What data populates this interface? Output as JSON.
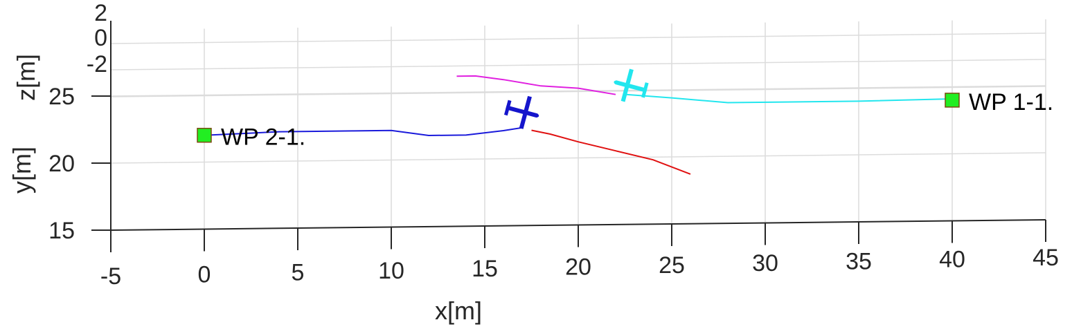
{
  "chart_data": {
    "type": "line",
    "title": "",
    "xlabel": "x[m]",
    "ylabel": "y[m]",
    "zlabel": "z[m]",
    "xlim": [
      -5,
      45
    ],
    "ylim": [
      15,
      27
    ],
    "zlim": [
      -2,
      2
    ],
    "grid": true,
    "x_ticks": [
      "-5",
      "0",
      "5",
      "10",
      "15",
      "20",
      "25",
      "30",
      "35",
      "40",
      "45"
    ],
    "y_ticks": [
      "15",
      "20",
      "25"
    ],
    "z_ticks": [
      "-2",
      "0",
      "2"
    ],
    "colors": {
      "blue_path": "#1a1adb",
      "red_path": "#e01010",
      "magenta_path": "#e020e0",
      "cyan_path": "#22e6ee",
      "blue_aircraft": "#1515cc",
      "cyan_aircraft": "#22e6ee",
      "waypoint_fill": "#22ee22",
      "grid": "#dcdcdc",
      "axis": "#262626"
    },
    "series": [
      {
        "color_key": "blue_path",
        "x": [
          0,
          2,
          4,
          6,
          8,
          10,
          12,
          14,
          16,
          17
        ],
        "y": [
          22.0,
          22.1,
          22.2,
          22.2,
          22.2,
          22.2,
          21.8,
          21.8,
          22.1,
          22.3
        ]
      },
      {
        "color_key": "red_path",
        "x": [
          17.5,
          18.5,
          20,
          22,
          24,
          26
        ],
        "y": [
          22.1,
          21.8,
          21.2,
          20.5,
          19.8,
          18.7
        ]
      },
      {
        "color_key": "magenta_path",
        "x": [
          13.5,
          14.5,
          16,
          18,
          20,
          22
        ],
        "y": [
          26.2,
          26.2,
          25.9,
          25.4,
          25.2,
          24.7
        ]
      },
      {
        "color_key": "cyan_path",
        "x": [
          22.5,
          25,
          28,
          31,
          35,
          40
        ],
        "y": [
          24.7,
          24.4,
          24.0,
          24.0,
          24.0,
          24.1
        ]
      }
    ],
    "aircraft": [
      {
        "icon": "airplane-icon",
        "color_key": "blue_aircraft",
        "x": 17,
        "y": 23.5,
        "heading_deg": 15
      },
      {
        "icon": "airplane-icon",
        "color_key": "cyan_aircraft",
        "x": 22.8,
        "y": 25.3,
        "heading_deg": 195
      }
    ],
    "waypoints": [
      {
        "label": "WP 2-1.",
        "x": 0,
        "y": 22.0
      },
      {
        "label": "WP 1-1.",
        "x": 40,
        "y": 24.0
      }
    ]
  }
}
